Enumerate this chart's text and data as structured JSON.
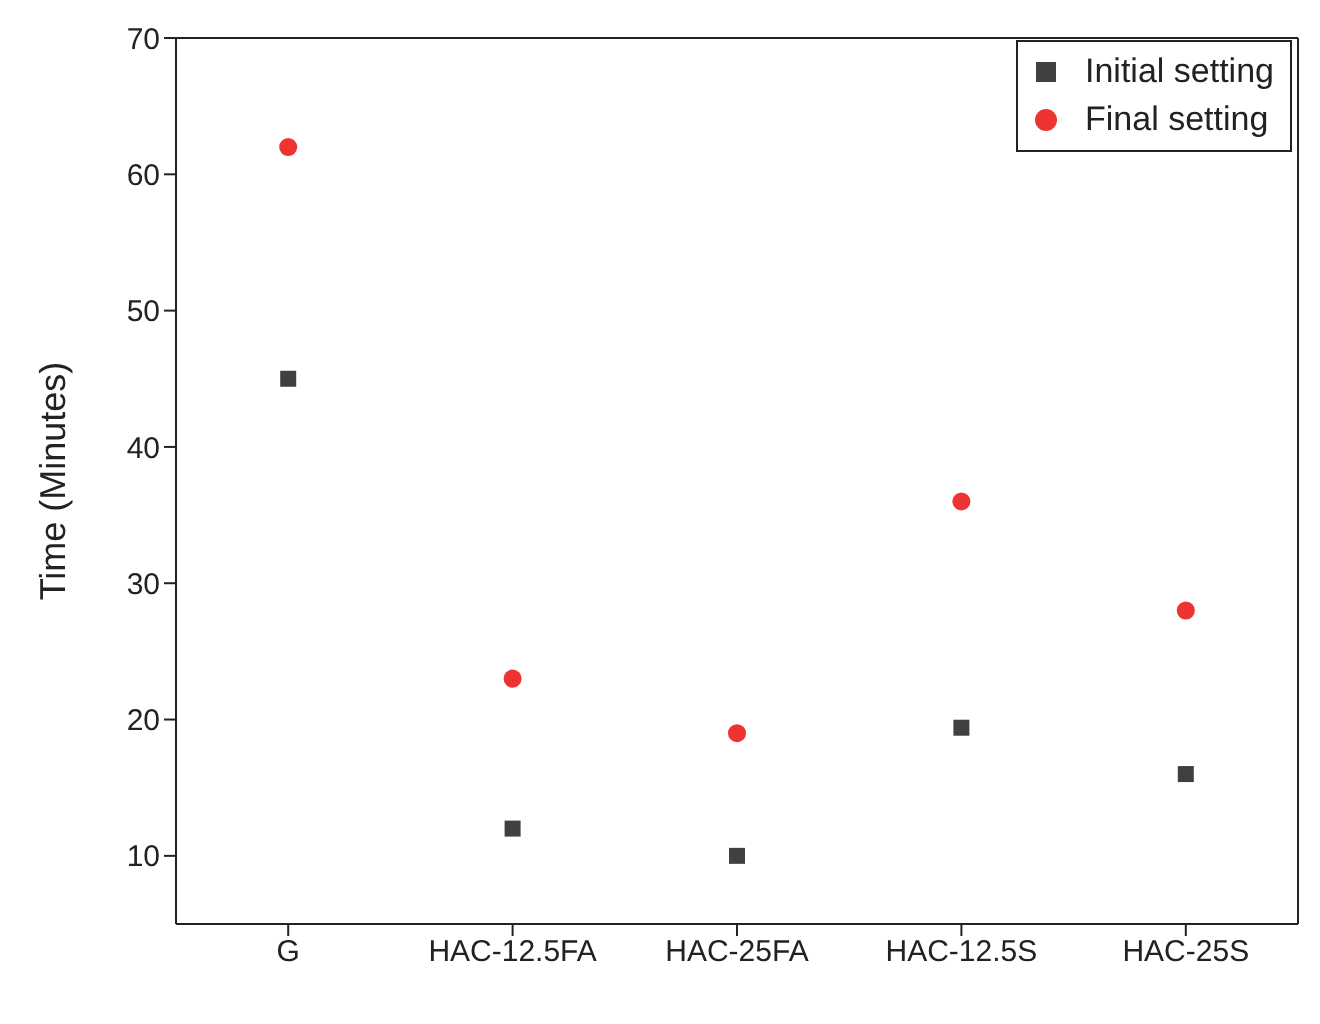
{
  "chart_data": {
    "type": "scatter",
    "ylabel": "Time (Minutes)",
    "categories": [
      "G",
      "HAC-12.5FA",
      "HAC-25FA",
      "HAC-12.5S",
      "HAC-25S"
    ],
    "series": [
      {
        "name": "Initial setting",
        "color": "#404040",
        "marker": "square",
        "values": [
          45,
          12,
          10,
          19.4,
          16
        ]
      },
      {
        "name": "Final setting",
        "color": "#ee3333",
        "marker": "circle",
        "values": [
          62,
          23,
          19,
          36,
          28
        ]
      }
    ],
    "ylim": [
      5,
      70
    ],
    "yticks": [
      10,
      20,
      30,
      40,
      50,
      60,
      70
    ],
    "legend": "top right"
  }
}
